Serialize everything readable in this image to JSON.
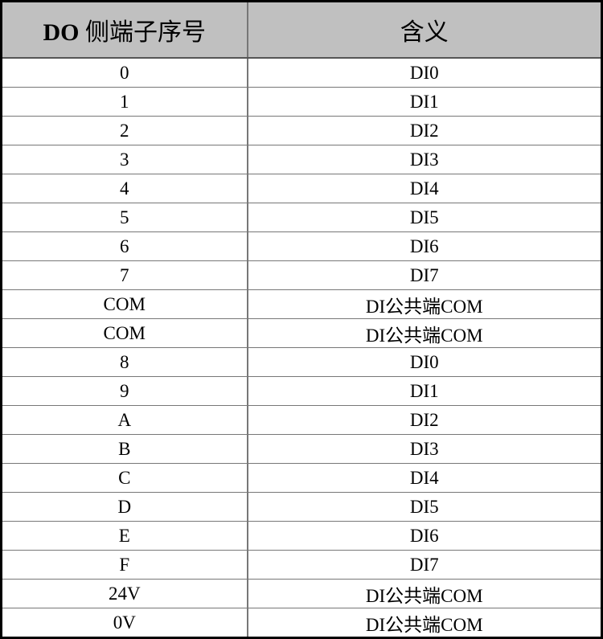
{
  "headers": [
    "DO 侧端子序号",
    "含义"
  ],
  "rows": [
    [
      "0",
      "DI0"
    ],
    [
      "1",
      "DI1"
    ],
    [
      "2",
      "DI2"
    ],
    [
      "3",
      "DI3"
    ],
    [
      "4",
      "DI4"
    ],
    [
      "5",
      "DI5"
    ],
    [
      "6",
      "DI6"
    ],
    [
      "7",
      "DI7"
    ],
    [
      "COM",
      "DI公共端COM"
    ],
    [
      "COM",
      "DI公共端COM"
    ],
    [
      "8",
      "DI0"
    ],
    [
      "9",
      "DI1"
    ],
    [
      "A",
      "DI2"
    ],
    [
      "B",
      "DI3"
    ],
    [
      "C",
      "DI4"
    ],
    [
      "D",
      "DI5"
    ],
    [
      "E",
      "DI6"
    ],
    [
      "F",
      "DI7"
    ],
    [
      "24V",
      "DI公共端COM"
    ],
    [
      "0V",
      "DI公共端COM"
    ]
  ]
}
